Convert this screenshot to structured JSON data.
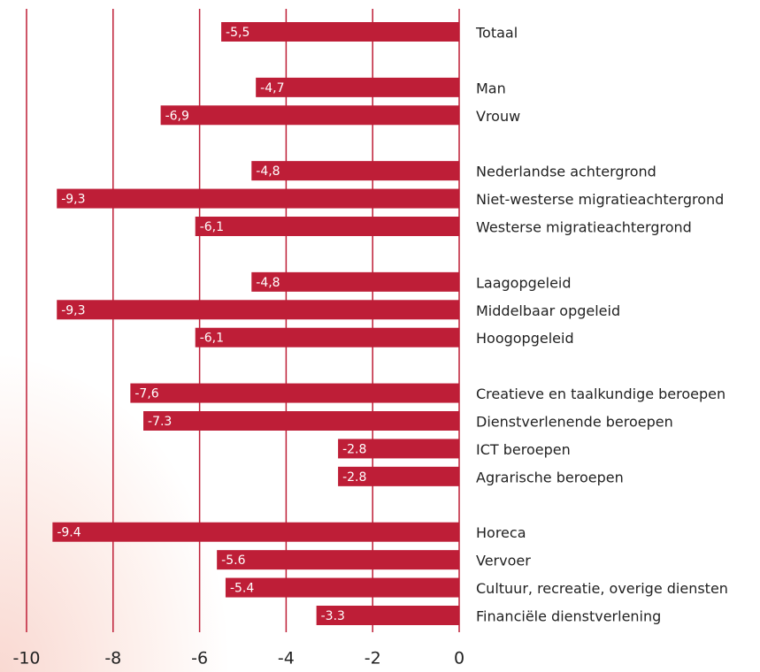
{
  "chart_data": {
    "type": "barh",
    "categories": [
      "Totaal",
      null,
      "Man",
      "Vrouw",
      null,
      "Nederlandse achtergrond",
      "Niet-westerse migratieachtergrond",
      "Westerse migratieachtergrond",
      null,
      "Laagopgeleid",
      "Middelbaar opgeleid",
      "Hoogopgeleid",
      null,
      "Creatieve en taalkundige beroepen",
      "Dienstverlenende beroepen",
      "ICT beroepen",
      "Agrarische beroepen",
      null,
      "Horeca",
      "Vervoer",
      "Cultuur, recreatie, overige diensten",
      "Financiële dienstverlening"
    ],
    "values": [
      -5.5,
      null,
      -4.7,
      -6.9,
      null,
      -4.8,
      -9.3,
      -6.1,
      null,
      -4.8,
      -9.3,
      -6.1,
      null,
      -7.6,
      -7.3,
      -2.8,
      -2.8,
      null,
      -9.4,
      -5.6,
      -5.4,
      -3.3
    ],
    "value_labels": [
      "-5,5",
      null,
      "-4,7",
      "-6,9",
      null,
      "-4,8",
      "-9,3",
      "-6,1",
      null,
      "-4,8",
      "-9,3",
      "-6,1",
      null,
      "-7,6",
      "-7.3",
      "-2.8",
      "-2.8",
      null,
      "-9.4",
      "-5.6",
      "-5.4",
      "-3.3"
    ],
    "color": "#be1e37",
    "xlim": [
      -10,
      0
    ],
    "xticks": [
      -10,
      -8,
      -6,
      -4,
      -2,
      0
    ],
    "grid": true
  }
}
